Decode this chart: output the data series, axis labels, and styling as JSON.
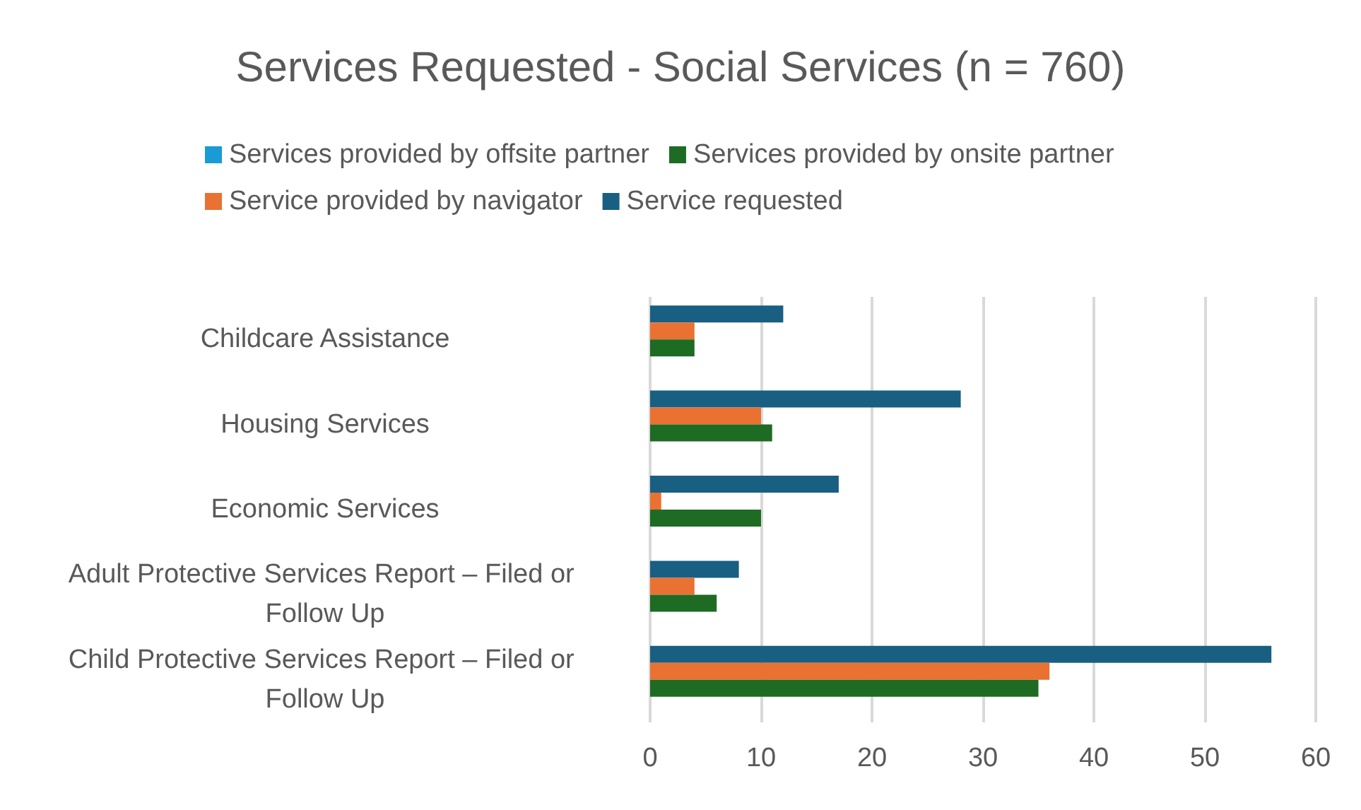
{
  "chart_data": {
    "type": "bar",
    "orientation": "horizontal",
    "title": "Services Requested - Social Services (n = 760)",
    "categories": [
      "Childcare Assistance",
      "Housing Services",
      "Economic Services",
      "Adult Protective Services Report – Filed or Follow Up",
      "Child Protective Services Report – Filed or Follow Up"
    ],
    "series": [
      {
        "name": "Services provided by offsite partner",
        "color": "#1a9ad6",
        "values": [
          0,
          0,
          0,
          0,
          0
        ]
      },
      {
        "name": "Services provided by onsite partner",
        "color": "#1e6b24",
        "values": [
          4,
          11,
          10,
          6,
          35
        ]
      },
      {
        "name": "Service provided by navigator",
        "color": "#e97132",
        "values": [
          4,
          10,
          1,
          4,
          36
        ]
      },
      {
        "name": "Service requested",
        "color": "#185f82",
        "values": [
          12,
          28,
          17,
          8,
          56
        ]
      }
    ],
    "xlim": [
      0,
      60
    ],
    "xticks": [
      0,
      10,
      20,
      30,
      40,
      50,
      60
    ],
    "grid": "x",
    "legend": "top"
  }
}
